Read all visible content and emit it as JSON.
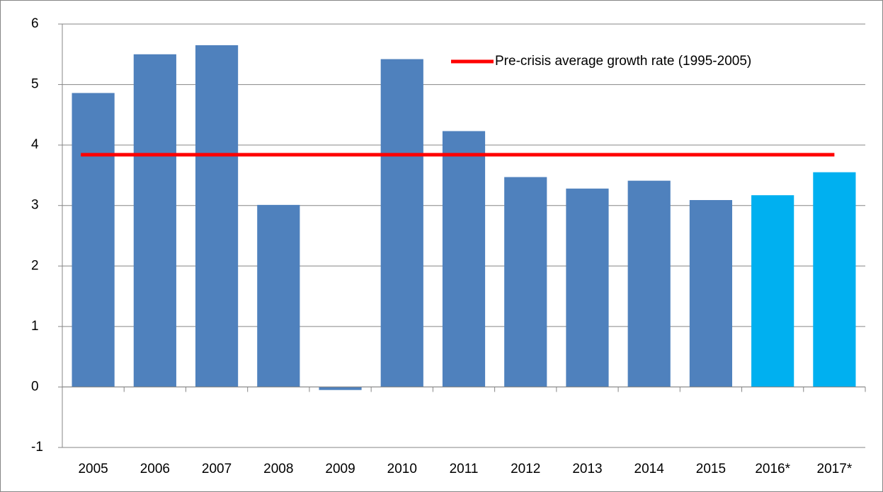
{
  "chart_data": {
    "type": "bar",
    "categories": [
      "2005",
      "2006",
      "2007",
      "2008",
      "2009",
      "2010",
      "2011",
      "2012",
      "2013",
      "2014",
      "2015",
      "2016*",
      "2017*"
    ],
    "values": [
      4.86,
      5.5,
      5.65,
      3.01,
      -0.05,
      5.42,
      4.23,
      3.47,
      3.28,
      3.41,
      3.09,
      3.17,
      3.55
    ],
    "colors": [
      "#4f81bd",
      "#4f81bd",
      "#4f81bd",
      "#4f81bd",
      "#4f81bd",
      "#4f81bd",
      "#4f81bd",
      "#4f81bd",
      "#4f81bd",
      "#4f81bd",
      "#4f81bd",
      "#00b0f0",
      "#00b0f0"
    ],
    "reference_line": {
      "name": "Pre-crisis average growth rate (1995-2005)",
      "value": 3.84,
      "color": "#ff0000"
    },
    "ylim": [
      -1,
      6
    ],
    "yticks": [
      -1,
      0,
      1,
      2,
      3,
      4,
      5,
      6
    ],
    "grid": true,
    "legend": "top-right"
  }
}
